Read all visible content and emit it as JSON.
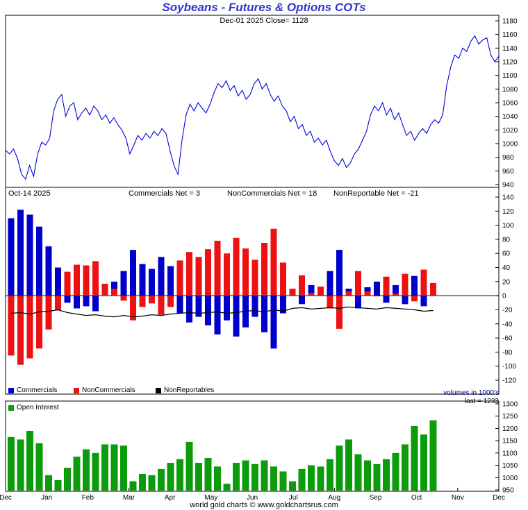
{
  "title": "Soybeans - Futures & Options COTs",
  "subtitle": "Dec-01 2025   Close= 1128",
  "cot_header": {
    "date": "Oct-14  2025",
    "commercials": "Commercials Net = 3",
    "noncommercials": "NonCommercials Net = 18",
    "nonreportables": "NonReportable Net = -21"
  },
  "legend": {
    "commercials": "Commercials",
    "noncommercials": "NonCommercials",
    "nonreportables": "NonReportables",
    "open_interest": "Open Interest"
  },
  "notes": {
    "volumes": "volumes in 1000's",
    "last": "last = 1233"
  },
  "footer": "world gold charts © www.goldchartsrus.com",
  "colors": {
    "title": "#3333cc",
    "price_line": "#0000dd",
    "commercials": "#0000cc",
    "noncommercials": "#ee1111",
    "nonreportables": "#000000",
    "open_interest": "#0b9b0b",
    "volumes_note": "#000080",
    "axis_text": "#000000"
  },
  "chart_data": [
    {
      "type": "line",
      "name": "price",
      "title": "Soybeans - Futures & Options COTs",
      "subtitle": "Dec-01 2025 Close= 1128",
      "close": 1128,
      "ylim": [
        940,
        1180
      ],
      "ytick_step": 20,
      "x_months": [
        "Dec",
        "Jan",
        "Feb",
        "Mar",
        "Apr",
        "May",
        "Jun",
        "Jul",
        "Aug",
        "Sep",
        "Oct",
        "Nov",
        "Dec"
      ],
      "values": [
        990,
        985,
        992,
        978,
        955,
        948,
        968,
        952,
        985,
        1002,
        998,
        1008,
        1048,
        1065,
        1072,
        1040,
        1055,
        1060,
        1035,
        1045,
        1052,
        1042,
        1055,
        1048,
        1035,
        1042,
        1030,
        1038,
        1028,
        1020,
        1008,
        985,
        998,
        1012,
        1005,
        1015,
        1008,
        1018,
        1012,
        1022,
        1015,
        990,
        968,
        955,
        1005,
        1042,
        1058,
        1048,
        1060,
        1052,
        1045,
        1058,
        1075,
        1088,
        1082,
        1092,
        1078,
        1085,
        1070,
        1078,
        1065,
        1072,
        1088,
        1095,
        1080,
        1088,
        1072,
        1062,
        1070,
        1055,
        1048,
        1032,
        1040,
        1022,
        1028,
        1012,
        1018,
        1002,
        1008,
        998,
        1005,
        988,
        975,
        968,
        978,
        965,
        972,
        985,
        992,
        1005,
        1018,
        1042,
        1055,
        1048,
        1060,
        1042,
        1052,
        1035,
        1045,
        1028,
        1012,
        1018,
        1005,
        1015,
        1022,
        1015,
        1028,
        1035,
        1030,
        1042,
        1085,
        1112,
        1130,
        1125,
        1140,
        1135,
        1150,
        1158,
        1146,
        1152,
        1155,
        1130,
        1120,
        1128
      ]
    },
    {
      "type": "bar",
      "name": "cot_net_positions",
      "as_of": "Oct-14 2025",
      "ylim": [
        -120,
        140
      ],
      "ytick_step": 20,
      "frequency": "weekly",
      "series": [
        {
          "name": "Commercials",
          "style": "bar",
          "color_key": "commercials",
          "last": 3,
          "values": [
            110,
            122,
            115,
            98,
            70,
            40,
            -10,
            -18,
            -15,
            -22,
            12,
            20,
            35,
            65,
            45,
            38,
            55,
            42,
            -25,
            -38,
            -30,
            -42,
            -55,
            -35,
            -58,
            -45,
            -30,
            -52,
            -75,
            -25,
            8,
            -12,
            15,
            5,
            35,
            65,
            10,
            -18,
            12,
            20,
            -10,
            15,
            -12,
            28,
            -15,
            3
          ]
        },
        {
          "name": "NonCommercials",
          "style": "bar",
          "color_key": "noncommercials",
          "last": 18,
          "values": [
            -85,
            -98,
            -89,
            -75,
            -48,
            -20,
            34,
            44,
            43,
            49,
            17,
            10,
            -7,
            -35,
            -16,
            -11,
            -27,
            -16,
            50,
            62,
            55,
            66,
            78,
            60,
            82,
            67,
            51,
            75,
            95,
            47,
            10,
            29,
            4,
            13,
            -18,
            -47,
            6,
            35,
            6,
            -1,
            27,
            3,
            31,
            -8,
            37,
            18
          ]
        },
        {
          "name": "NonReportables",
          "style": "line",
          "color_key": "nonreportables",
          "last": -21,
          "values": [
            -25,
            -24,
            -26,
            -23,
            -22,
            -20,
            -24,
            -26,
            -28,
            -27,
            -29,
            -30,
            -28,
            -30,
            -29,
            -27,
            -28,
            -26,
            -25,
            -24,
            -25,
            -24,
            -23,
            -25,
            -24,
            -22,
            -21,
            -23,
            -20,
            -22,
            -18,
            -17,
            -19,
            -18,
            -17,
            -18,
            -16,
            -17,
            -18,
            -19,
            -17,
            -18,
            -19,
            -20,
            -22,
            -21
          ]
        }
      ]
    },
    {
      "type": "bar",
      "name": "open_interest",
      "units": "volumes in 1000's",
      "last": 1233,
      "ylim": [
        950,
        1300
      ],
      "ytick_step": 50,
      "values": [
        1165,
        1155,
        1190,
        1140,
        1010,
        990,
        1040,
        1085,
        1115,
        1100,
        1135,
        1135,
        1130,
        985,
        1015,
        1010,
        1035,
        1060,
        1075,
        1145,
        1060,
        1080,
        1045,
        975,
        1060,
        1070,
        1055,
        1070,
        1045,
        1025,
        985,
        1035,
        1050,
        1045,
        1075,
        1130,
        1155,
        1095,
        1070,
        1055,
        1075,
        1100,
        1135,
        1210,
        1175,
        1233
      ]
    }
  ]
}
